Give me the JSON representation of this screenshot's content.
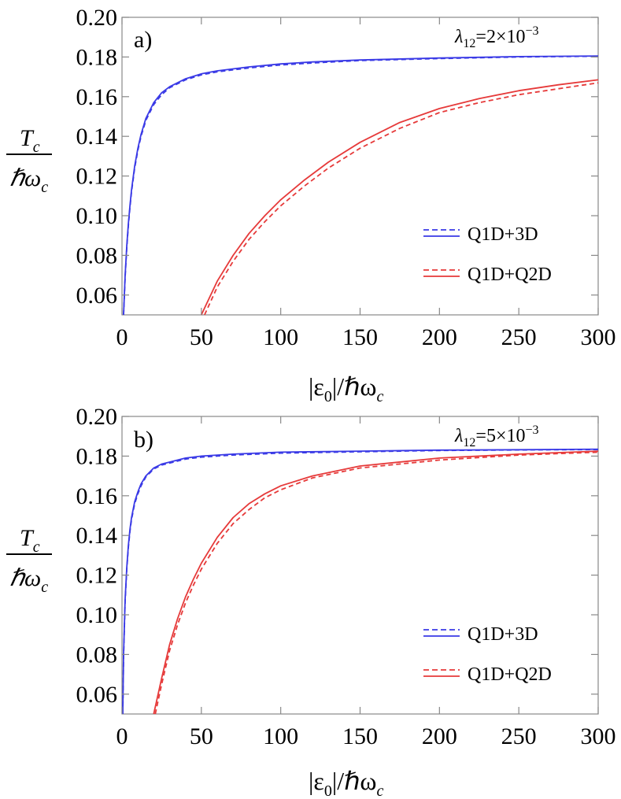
{
  "chart_data": [
    {
      "type": "line",
      "panel_label": "a)",
      "annotation": "λ12=2×10−3",
      "annotation_parts": {
        "symbol": "λ",
        "sub": "12",
        "mantissa": "=2×10",
        "exp": "−3"
      },
      "ylabel": {
        "num": "T",
        "num_sub": "c",
        "den": "ℏω",
        "den_sub": "c"
      },
      "xlabel": {
        "pre": "|ε",
        "sub0": "0",
        "mid": "|/ℏω",
        "subc": "c"
      },
      "xlim": [
        0,
        300
      ],
      "ylim": [
        0.05,
        0.2
      ],
      "xticks": [
        0,
        50,
        100,
        150,
        200,
        250,
        300
      ],
      "yticks": [
        0.06,
        0.08,
        0.1,
        0.12,
        0.14,
        0.16,
        0.18,
        0.2
      ],
      "ytick_labels": [
        "0.06",
        "0.08",
        "0.10",
        "0.12",
        "0.14",
        "0.16",
        "0.18",
        "0.20"
      ],
      "legend": [
        {
          "label": "Q1D+3D",
          "color": "#3a3ae6"
        },
        {
          "label": "Q1D+Q2D",
          "color": "#e63a3a"
        }
      ],
      "series": [
        {
          "name": "Q1D+3D",
          "style": "solid",
          "color": "#3a3ae6",
          "x": [
            1,
            2,
            3,
            4,
            5,
            6,
            8,
            10,
            12,
            15,
            20,
            25,
            30,
            40,
            50,
            60,
            80,
            100,
            120,
            150,
            200,
            250,
            300
          ],
          "y": [
            0.05,
            0.07,
            0.085,
            0.096,
            0.105,
            0.113,
            0.125,
            0.134,
            0.141,
            0.149,
            0.157,
            0.162,
            0.165,
            0.169,
            0.1715,
            0.173,
            0.175,
            0.1765,
            0.1775,
            0.1785,
            0.1795,
            0.1802,
            0.1805
          ]
        },
        {
          "name": "Q1D+3D",
          "style": "dashed",
          "color": "#3a3ae6",
          "x": [
            1,
            2,
            3,
            4,
            5,
            6,
            8,
            10,
            12,
            15,
            20,
            25,
            30,
            40,
            50,
            60,
            80,
            100,
            120,
            150,
            200,
            250,
            300
          ],
          "y": [
            0.05,
            0.069,
            0.084,
            0.095,
            0.104,
            0.112,
            0.124,
            0.133,
            0.14,
            0.148,
            0.156,
            0.161,
            0.1645,
            0.1685,
            0.171,
            0.1725,
            0.1745,
            0.176,
            0.177,
            0.1782,
            0.1792,
            0.18,
            0.1804
          ]
        },
        {
          "name": "Q1D+Q2D",
          "style": "solid",
          "color": "#e63a3a",
          "x": [
            50,
            60,
            70,
            80,
            90,
            100,
            115,
            130,
            150,
            175,
            200,
            225,
            250,
            275,
            300
          ],
          "y": [
            0.05,
            0.067,
            0.08,
            0.091,
            0.1,
            0.108,
            0.118,
            0.127,
            0.137,
            0.147,
            0.154,
            0.159,
            0.163,
            0.166,
            0.1685
          ]
        },
        {
          "name": "Q1D+Q2D",
          "style": "dashed",
          "color": "#e63a3a",
          "x": [
            52,
            60,
            70,
            80,
            90,
            100,
            115,
            130,
            150,
            175,
            200,
            225,
            250,
            275,
            300
          ],
          "y": [
            0.05,
            0.064,
            0.077,
            0.088,
            0.097,
            0.105,
            0.115,
            0.124,
            0.134,
            0.144,
            0.152,
            0.157,
            0.161,
            0.164,
            0.167
          ]
        }
      ]
    },
    {
      "type": "line",
      "panel_label": "b)",
      "annotation": "λ12=5×10−3",
      "annotation_parts": {
        "symbol": "λ",
        "sub": "12",
        "mantissa": "=5×10",
        "exp": "−3"
      },
      "ylabel": {
        "num": "T",
        "num_sub": "c",
        "den": "ℏω",
        "den_sub": "c"
      },
      "xlabel": {
        "pre": "|ε",
        "sub0": "0",
        "mid": "|/ℏω",
        "subc": "c"
      },
      "xlim": [
        0,
        300
      ],
      "ylim": [
        0.05,
        0.2
      ],
      "xticks": [
        0,
        50,
        100,
        150,
        200,
        250,
        300
      ],
      "yticks": [
        0.06,
        0.08,
        0.1,
        0.12,
        0.14,
        0.16,
        0.18,
        0.2
      ],
      "ytick_labels": [
        "0.06",
        "0.08",
        "0.10",
        "0.12",
        "0.14",
        "0.16",
        "0.18",
        "0.20"
      ],
      "legend": [
        {
          "label": "Q1D+3D",
          "color": "#3a3ae6"
        },
        {
          "label": "Q1D+Q2D",
          "color": "#e63a3a"
        }
      ],
      "series": [
        {
          "name": "Q1D+3D",
          "style": "solid",
          "color": "#3a3ae6",
          "x": [
            0.5,
            1,
            2,
            3,
            4,
            5,
            6,
            8,
            10,
            12,
            15,
            20,
            25,
            30,
            40,
            50,
            70,
            100,
            150,
            200,
            250,
            300
          ],
          "y": [
            0.05,
            0.08,
            0.108,
            0.124,
            0.135,
            0.143,
            0.149,
            0.157,
            0.162,
            0.166,
            0.17,
            0.174,
            0.176,
            0.177,
            0.179,
            0.18,
            0.181,
            0.182,
            0.1825,
            0.183,
            0.1832,
            0.1835
          ]
        },
        {
          "name": "Q1D+3D",
          "style": "dashed",
          "color": "#3a3ae6",
          "x": [
            0.5,
            1,
            2,
            3,
            4,
            5,
            6,
            8,
            10,
            12,
            15,
            20,
            25,
            30,
            40,
            50,
            70,
            100,
            150,
            200,
            250,
            300
          ],
          "y": [
            0.05,
            0.079,
            0.107,
            0.123,
            0.134,
            0.142,
            0.148,
            0.156,
            0.161,
            0.165,
            0.1695,
            0.1735,
            0.1755,
            0.1765,
            0.1785,
            0.1795,
            0.1805,
            0.1815,
            0.1822,
            0.1828,
            0.1831,
            0.1833
          ]
        },
        {
          "name": "Q1D+Q2D",
          "style": "solid",
          "color": "#e63a3a",
          "x": [
            20,
            25,
            30,
            35,
            40,
            45,
            50,
            60,
            70,
            80,
            90,
            100,
            120,
            150,
            200,
            250,
            300
          ],
          "y": [
            0.05,
            0.068,
            0.085,
            0.098,
            0.109,
            0.118,
            0.126,
            0.139,
            0.149,
            0.156,
            0.161,
            0.165,
            0.17,
            0.175,
            0.179,
            0.181,
            0.1825
          ]
        },
        {
          "name": "Q1D+Q2D",
          "style": "dashed",
          "color": "#e63a3a",
          "x": [
            21,
            25,
            30,
            35,
            40,
            45,
            50,
            60,
            70,
            80,
            90,
            100,
            120,
            150,
            200,
            250,
            300
          ],
          "y": [
            0.05,
            0.065,
            0.082,
            0.095,
            0.106,
            0.115,
            0.123,
            0.136,
            0.146,
            0.153,
            0.159,
            0.163,
            0.169,
            0.174,
            0.178,
            0.1805,
            0.182
          ]
        }
      ]
    }
  ]
}
